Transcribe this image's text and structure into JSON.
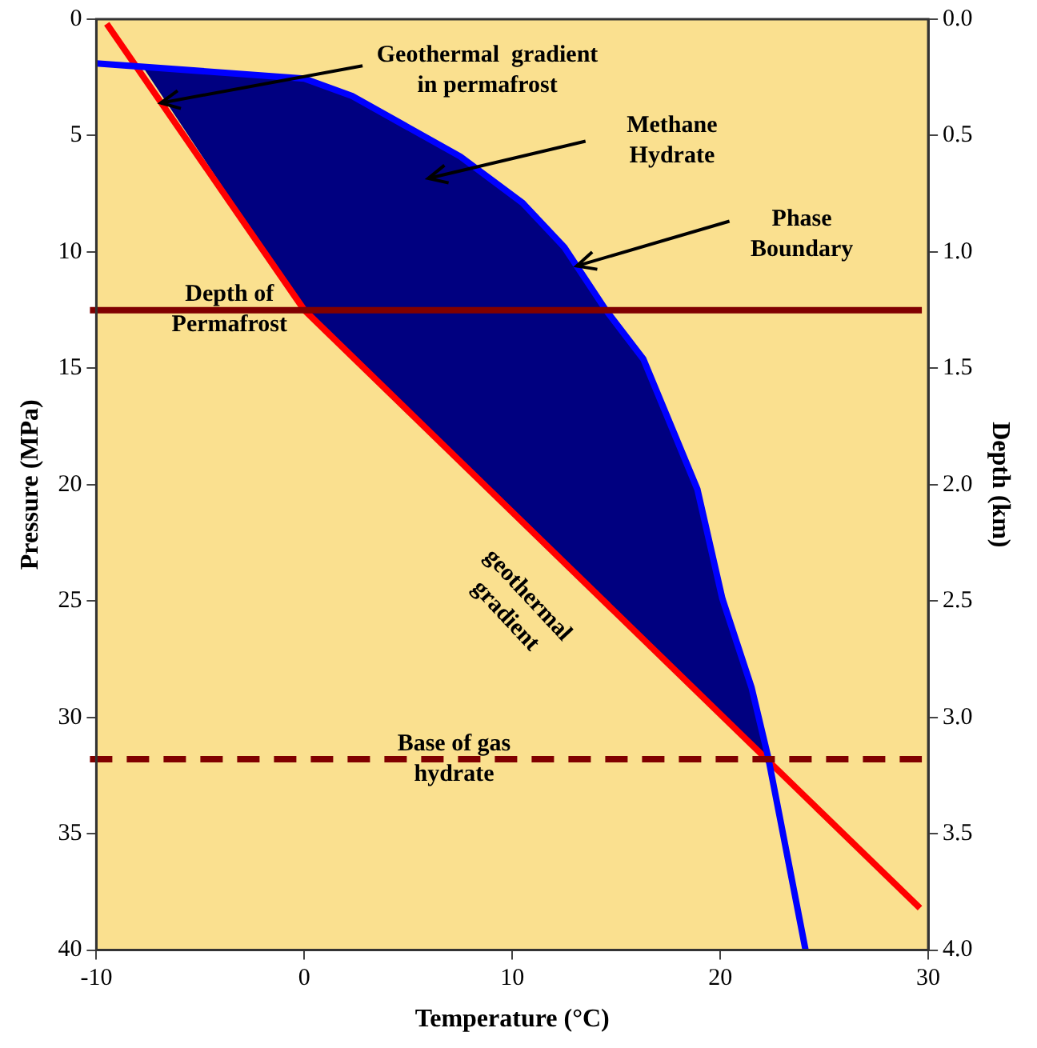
{
  "chart_data": {
    "type": "line",
    "xlabel": "Temperature (°C)",
    "ylabel": "Pressure (MPa)",
    "y2label": "Depth (km)",
    "xlim": [
      -10,
      30
    ],
    "xticks": [
      -10,
      0,
      10,
      20,
      30
    ],
    "ylim": [
      40,
      0
    ],
    "yticks": [
      0,
      5,
      10,
      15,
      20,
      25,
      30,
      35,
      40
    ],
    "y2lim": [
      4,
      0
    ],
    "y2ticks": [
      {
        "value": 0,
        "label": "0.0"
      },
      {
        "value": 0.5,
        "label": "0.5"
      },
      {
        "value": 1,
        "label": "1.0"
      },
      {
        "value": 1.5,
        "label": "1.5"
      },
      {
        "value": 2,
        "label": "2.0"
      },
      {
        "value": 2.5,
        "label": "2.5"
      },
      {
        "value": 3,
        "label": "3.0"
      },
      {
        "value": 3.5,
        "label": "3.5"
      },
      {
        "value": 4,
        "label": "4.0"
      }
    ],
    "series": [
      {
        "type": "area",
        "color": "#000080",
        "x": [
          -7.8,
          0,
          2.3,
          7.5,
          10.5,
          12.5,
          14.5,
          16.3,
          18.9,
          20.1,
          21.5,
          22.2,
          0,
          -7.8
        ],
        "values": [
          2,
          2.6,
          3.3,
          5.9,
          7.9,
          9.8,
          12.5,
          14.6,
          20.2,
          24.9,
          28.7,
          31.8,
          12.5,
          2
        ]
      },
      {
        "color": "#0000ff",
        "x": [
          -10,
          0,
          2.3,
          7.5,
          10.5,
          12.5,
          14.5,
          16.3,
          18.9,
          20.1,
          21.5,
          22.3,
          24.1
        ],
        "values": [
          1.9,
          2.55,
          3.3,
          5.9,
          7.9,
          9.8,
          12.5,
          14.6,
          20.2,
          24.9,
          28.7,
          31.7,
          40
        ]
      },
      {
        "color": "#ff0000",
        "x": [
          -9.5,
          0,
          29.6
        ],
        "values": [
          0.2,
          12.5,
          38.2
        ]
      }
    ],
    "ref_lines": [
      {
        "axis": "y",
        "value": 12.5,
        "label": "Depth of\nPermafrost",
        "color": "#800000",
        "line_style": "solid"
      },
      {
        "axis": "y",
        "value": 31.8,
        "label": "Base of gas\nhydrate",
        "color": "#800000",
        "line_style": "dashed"
      }
    ],
    "annotations": [
      {
        "text": "Geothermal  gradient\nin permafrost",
        "x": -6.9,
        "y": 3.6
      },
      "Methane\nHydrate",
      {
        "text": "Phase\nBoundary",
        "x": 13.1,
        "y": 10.6
      },
      "geothermal\ngradient"
    ],
    "grid": false,
    "legend": false,
    "marker": "none"
  }
}
